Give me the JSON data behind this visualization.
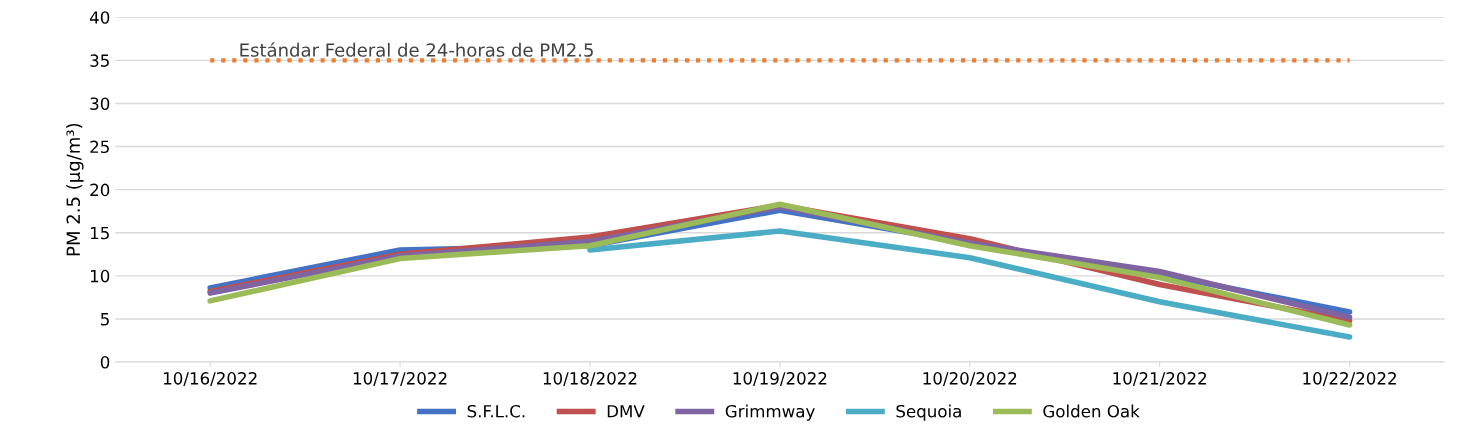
{
  "chart_data": {
    "type": "line",
    "ylabel": "PM 2.5 (µg/m³)",
    "categories": [
      "10/16/2022",
      "10/17/2022",
      "10/18/2022",
      "10/19/2022",
      "10/20/2022",
      "10/21/2022",
      "10/22/2022"
    ],
    "series": [
      {
        "name": "S.F.L.C.",
        "color": "#4472c4",
        "values": [
          8.6,
          13.0,
          13.5,
          17.6,
          13.8,
          10.2,
          5.8
        ]
      },
      {
        "name": "DMV",
        "color": "#c0504d",
        "values": [
          8.2,
          12.5,
          14.5,
          18.2,
          14.3,
          9.0,
          4.8
        ]
      },
      {
        "name": "Grimmway",
        "color": "#8064a2",
        "values": [
          8.0,
          12.3,
          14.0,
          18.0,
          13.8,
          10.5,
          5.2
        ]
      },
      {
        "name": "Sequoia",
        "color": "#4bacc6",
        "values": [
          null,
          null,
          13.0,
          15.2,
          12.1,
          7.0,
          2.9
        ]
      },
      {
        "name": "Golden Oak",
        "color": "#9bbb59",
        "values": [
          7.1,
          12.0,
          13.5,
          18.3,
          13.5,
          9.8,
          4.3
        ]
      }
    ],
    "ylim": [
      0,
      40
    ],
    "yticks": [
      0,
      5,
      10,
      15,
      20,
      25,
      30,
      35,
      40
    ],
    "grid": "y",
    "legend": "bottom",
    "line_style": "solid",
    "marker": "none",
    "ref_lines": [
      {
        "axis": "y",
        "value": 35,
        "label": "Estándar Federal de 24-horas de PM2.5",
        "color": "#ed7d31",
        "line_style": "dotted"
      }
    ]
  }
}
